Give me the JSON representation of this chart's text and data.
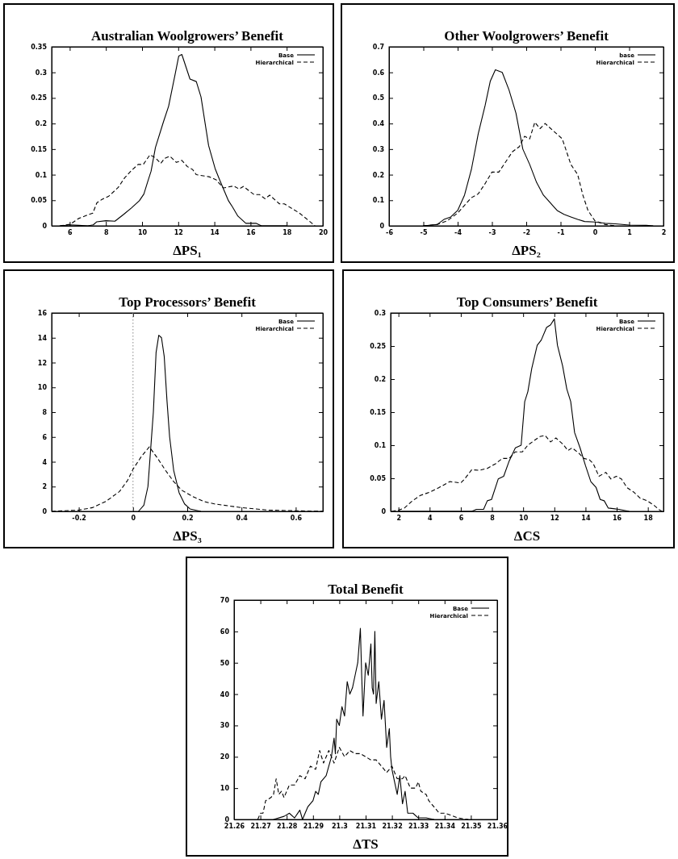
{
  "chart_data": [
    {
      "type": "line",
      "title": "Australian Woolgrowers’ Benefit",
      "xlabel": "ΔPS₁",
      "legend": "top right",
      "xlim": [
        5,
        20
      ],
      "xticks": [
        6,
        8,
        10,
        12,
        14,
        16,
        18,
        20
      ],
      "ylim": [
        0,
        0.35
      ],
      "yticks": [
        0,
        0.05,
        0.1,
        0.15,
        0.2,
        0.25,
        0.3,
        0.35
      ],
      "series": [
        {
          "name": "Base",
          "color": "#000000",
          "line_style": "solid",
          "x": [
            5.5,
            6,
            6.5,
            7,
            7.3,
            7.5,
            8,
            8.5,
            8.97,
            9.41,
            9.85,
            10.1,
            10.3,
            10.5,
            10.74,
            11.18,
            11.47,
            11.84,
            12.03,
            12.2,
            12.65,
            13.0,
            13.26,
            13.68,
            14.04,
            14.3,
            14.78,
            15.0,
            15.3,
            15.74,
            16.3,
            16.6,
            18
          ],
          "values": [
            0,
            0.002,
            0.001,
            0,
            0.002,
            0.008,
            0.01,
            0.009,
            0.022,
            0.035,
            0.049,
            0.062,
            0.085,
            0.107,
            0.153,
            0.203,
            0.234,
            0.298,
            0.332,
            0.335,
            0.287,
            0.282,
            0.252,
            0.157,
            0.112,
            0.089,
            0.049,
            0.037,
            0.019,
            0.005,
            0.005,
            0,
            0
          ]
        },
        {
          "name": "Hierarchical",
          "color": "#000000",
          "line_style": "dashed",
          "x": [
            5.44,
            6.03,
            6.47,
            6.9,
            7.28,
            7.5,
            7.8,
            8.16,
            8.68,
            9.04,
            9.41,
            9.78,
            10.07,
            10.44,
            10.74,
            11.03,
            11.25,
            11.54,
            11.9,
            12.2,
            12.5,
            12.8,
            13.0,
            13.7,
            14.1,
            14.5,
            15.07,
            15.37,
            15.6,
            16.2,
            16.5,
            16.8,
            17.06,
            17.6,
            17.87,
            18.7,
            19.4,
            19.56
          ],
          "values": [
            0,
            0.003,
            0.014,
            0.02,
            0.025,
            0.045,
            0.052,
            0.058,
            0.075,
            0.094,
            0.108,
            0.12,
            0.12,
            0.139,
            0.133,
            0.122,
            0.132,
            0.136,
            0.124,
            0.128,
            0.116,
            0.11,
            0.1,
            0.096,
            0.09,
            0.074,
            0.078,
            0.072,
            0.077,
            0.061,
            0.061,
            0.053,
            0.06,
            0.043,
            0.043,
            0.025,
            0.005,
            0
          ]
        }
      ]
    },
    {
      "type": "line",
      "title": "Other Woolgrowers’ Benefit",
      "xlabel": "ΔPS₂",
      "legend": "top right",
      "xlim": [
        -6,
        2
      ],
      "xticks": [
        -6,
        -5,
        -4,
        -3,
        -2,
        -1,
        0,
        1,
        2
      ],
      "ylim": [
        0,
        0.7
      ],
      "yticks": [
        0,
        0.1,
        0.2,
        0.3,
        0.4,
        0.5,
        0.6,
        0.7
      ],
      "series": [
        {
          "name": "base",
          "color": "#000000",
          "line_style": "solid",
          "x": [
            -5,
            -4.6,
            -4.4,
            -4.2,
            -4.0,
            -3.8,
            -3.6,
            -3.4,
            -3.2,
            -3.05,
            -2.9,
            -2.7,
            -2.5,
            -2.3,
            -2.1,
            -1.9,
            -1.7,
            -1.5,
            -1.3,
            -1.1,
            -0.9,
            -0.7,
            -0.5,
            -0.3,
            0,
            0.3,
            0.6,
            1,
            1.5,
            1.7
          ],
          "values": [
            0,
            0.005,
            0.025,
            0.035,
            0.06,
            0.12,
            0.22,
            0.36,
            0.47,
            0.565,
            0.61,
            0.6,
            0.53,
            0.44,
            0.3,
            0.24,
            0.17,
            0.12,
            0.09,
            0.06,
            0.045,
            0.035,
            0.025,
            0.017,
            0.015,
            0.01,
            0.008,
            0.003,
            0.002,
            0
          ]
        },
        {
          "name": "Hierarchical",
          "color": "#000000",
          "line_style": "dashed",
          "x": [
            -5,
            -4.6,
            -4.3,
            -4.0,
            -3.8,
            -3.6,
            -3.4,
            -3.2,
            -3.0,
            -2.8,
            -2.6,
            -2.4,
            -2.2,
            -2.05,
            -1.9,
            -1.75,
            -1.6,
            -1.45,
            -1.2,
            -0.95,
            -0.7,
            -0.5,
            -0.35,
            -0.2,
            0,
            0.3,
            0.6
          ],
          "values": [
            0,
            0.005,
            0.02,
            0.05,
            0.08,
            0.11,
            0.125,
            0.165,
            0.21,
            0.21,
            0.25,
            0.29,
            0.31,
            0.35,
            0.34,
            0.405,
            0.38,
            0.4,
            0.37,
            0.34,
            0.24,
            0.2,
            0.12,
            0.06,
            0.02,
            0.005,
            0
          ]
        }
      ]
    },
    {
      "type": "line",
      "title": "Top Processors’ Benefit",
      "xlabel": "ΔPS₃",
      "legend": "top right",
      "xlim": [
        -0.3,
        0.7
      ],
      "xticks": [
        -0.2,
        0,
        0.2,
        0.4,
        0.6
      ],
      "ylim": [
        0,
        16
      ],
      "yticks": [
        0,
        2,
        4,
        6,
        8,
        10,
        12,
        14,
        16
      ],
      "ref_lines": [
        {
          "axis": "x",
          "value": 0,
          "color": "#888888",
          "line_style": "dotted"
        }
      ],
      "series": [
        {
          "name": "Base",
          "color": "#000000",
          "line_style": "solid",
          "x": [
            0.02,
            0.04,
            0.055,
            0.065,
            0.075,
            0.085,
            0.095,
            0.105,
            0.115,
            0.125,
            0.135,
            0.15,
            0.17,
            0.19,
            0.21,
            0.25
          ],
          "values": [
            0,
            0.5,
            2,
            5,
            8,
            12.8,
            14.2,
            14,
            12.5,
            9,
            6,
            3.3,
            1.5,
            0.6,
            0.2,
            0
          ]
        },
        {
          "name": "Hierarchical",
          "color": "#000000",
          "line_style": "dashed",
          "x": [
            -0.3,
            -0.2,
            -0.15,
            -0.1,
            -0.05,
            -0.02,
            0,
            0.03,
            0.06,
            0.09,
            0.12,
            0.15,
            0.18,
            0.22,
            0.26,
            0.3,
            0.4,
            0.5,
            0.6,
            0.7
          ],
          "values": [
            0,
            0.1,
            0.3,
            0.8,
            1.6,
            2.5,
            3.4,
            4.4,
            5.2,
            4.3,
            3.3,
            2.4,
            1.7,
            1.2,
            0.8,
            0.6,
            0.3,
            0.1,
            0.05,
            0
          ]
        }
      ]
    },
    {
      "type": "line",
      "title": "Top Consumers’ Benefit",
      "xlabel": "ΔCS",
      "legend": "top right",
      "xlim": [
        1.5,
        19
      ],
      "xticks": [
        2,
        4,
        6,
        8,
        10,
        12,
        14,
        16,
        18
      ],
      "ylim": [
        0,
        0.3
      ],
      "yticks": [
        0,
        0.05,
        0.1,
        0.15,
        0.2,
        0.25,
        0.3
      ],
      "series": [
        {
          "name": "Base",
          "color": "#000000",
          "line_style": "solid",
          "x": [
            2,
            5,
            6.7,
            7.0,
            7.46,
            7.7,
            7.97,
            8.4,
            8.75,
            9.1,
            9.5,
            9.87,
            10.1,
            10.3,
            10.55,
            10.9,
            11.16,
            11.5,
            11.76,
            12.0,
            12.2,
            12.53,
            12.8,
            13.05,
            13.3,
            13.65,
            14.0,
            14.34,
            14.68,
            14.94,
            15.2,
            15.46,
            16.15,
            16.8
          ],
          "values": [
            0,
            0,
            0,
            0.003,
            0.003,
            0.016,
            0.018,
            0.049,
            0.053,
            0.076,
            0.096,
            0.1,
            0.166,
            0.181,
            0.216,
            0.251,
            0.259,
            0.278,
            0.282,
            0.291,
            0.251,
            0.22,
            0.185,
            0.166,
            0.119,
            0.096,
            0.069,
            0.045,
            0.036,
            0.018,
            0.016,
            0.005,
            0.003,
            0
          ]
        },
        {
          "name": "Hierarchical",
          "color": "#000000",
          "line_style": "dashed",
          "x": [
            1.57,
            2.03,
            2.38,
            2.9,
            3.4,
            4.0,
            4.6,
            5.3,
            6.0,
            6.25,
            6.7,
            7.2,
            7.7,
            8.23,
            8.66,
            9.1,
            9.5,
            9.95,
            10.3,
            10.7,
            11.07,
            11.4,
            11.76,
            12.1,
            12.53,
            12.88,
            13.14,
            13.57,
            13.9,
            14.25,
            14.5,
            14.86,
            15.3,
            15.63,
            15.98,
            16.3,
            16.66,
            17.1,
            17.5,
            17.95,
            18.4,
            18.7,
            18.9
          ],
          "values": [
            0,
            0.002,
            0.005,
            0.016,
            0.024,
            0.029,
            0.036,
            0.045,
            0.043,
            0.049,
            0.063,
            0.062,
            0.065,
            0.072,
            0.08,
            0.08,
            0.09,
            0.09,
            0.1,
            0.107,
            0.113,
            0.115,
            0.105,
            0.111,
            0.102,
            0.092,
            0.096,
            0.088,
            0.08,
            0.078,
            0.072,
            0.053,
            0.059,
            0.049,
            0.053,
            0.049,
            0.036,
            0.029,
            0.02,
            0.016,
            0.009,
            0.003,
            0
          ]
        }
      ]
    },
    {
      "type": "line",
      "title": "Total Benefit",
      "xlabel": "ΔTS",
      "legend": "top right",
      "xlim": [
        21.26,
        21.36
      ],
      "xticks": [
        21.26,
        21.27,
        21.28,
        21.29,
        21.3,
        21.31,
        21.32,
        21.33,
        21.34,
        21.35,
        21.36
      ],
      "ylim": [
        0,
        70
      ],
      "yticks": [
        0,
        10,
        20,
        30,
        40,
        50,
        60,
        70
      ],
      "series": [
        {
          "name": "Base",
          "color": "#000000",
          "line_style": "solid",
          "x": [
            21.275,
            21.279,
            21.281,
            21.283,
            21.285,
            21.286,
            21.288,
            21.29,
            21.291,
            21.292,
            21.293,
            21.295,
            21.296,
            21.297,
            21.298,
            21.2985,
            21.299,
            21.3,
            21.301,
            21.302,
            21.303,
            21.304,
            21.305,
            21.306,
            21.307,
            21.308,
            21.3085,
            21.309,
            21.31,
            21.311,
            21.312,
            21.3125,
            21.313,
            21.3135,
            21.314,
            21.315,
            21.316,
            21.317,
            21.318,
            21.319,
            21.3195,
            21.32,
            21.321,
            21.322,
            21.323,
            21.324,
            21.325,
            21.326,
            21.328,
            21.33,
            21.333,
            21.336
          ],
          "values": [
            0,
            1,
            2,
            0.5,
            3,
            0,
            4,
            6,
            9,
            8,
            12,
            14,
            17,
            20,
            26,
            21,
            32,
            30,
            36,
            33,
            44,
            40,
            42,
            46,
            50,
            61,
            46,
            33,
            50,
            46,
            56,
            42,
            40,
            60,
            37,
            44,
            32,
            38,
            23,
            29,
            20,
            16,
            12,
            8,
            14,
            5,
            9,
            2,
            2,
            0.5,
            0.5,
            0
          ]
        },
        {
          "name": "Hierarchical",
          "color": "#000000",
          "line_style": "dashed",
          "x": [
            21.269,
            21.27,
            21.271,
            21.272,
            21.274,
            21.275,
            21.276,
            21.277,
            21.278,
            21.279,
            21.281,
            21.283,
            21.285,
            21.287,
            21.289,
            21.291,
            21.2925,
            21.294,
            21.296,
            21.298,
            21.3,
            21.302,
            21.304,
            21.306,
            21.308,
            21.31,
            21.312,
            21.314,
            21.316,
            21.318,
            21.319,
            21.32,
            21.321,
            21.322,
            21.324,
            21.325,
            21.327,
            21.329,
            21.33,
            21.331,
            21.333,
            21.334,
            21.336,
            21.338,
            21.34,
            21.342,
            21.345,
            21.349
          ],
          "values": [
            0,
            2,
            2,
            6,
            7,
            8,
            13,
            8,
            9,
            7,
            11,
            11,
            14,
            13,
            17,
            16,
            22,
            18,
            22,
            18,
            23,
            20,
            22,
            21,
            21,
            20,
            19,
            19,
            17,
            15,
            16,
            17,
            15,
            13,
            13,
            14,
            10,
            10,
            12,
            9,
            8,
            6,
            4,
            2,
            2,
            1.5,
            0.5,
            0
          ]
        }
      ]
    }
  ]
}
